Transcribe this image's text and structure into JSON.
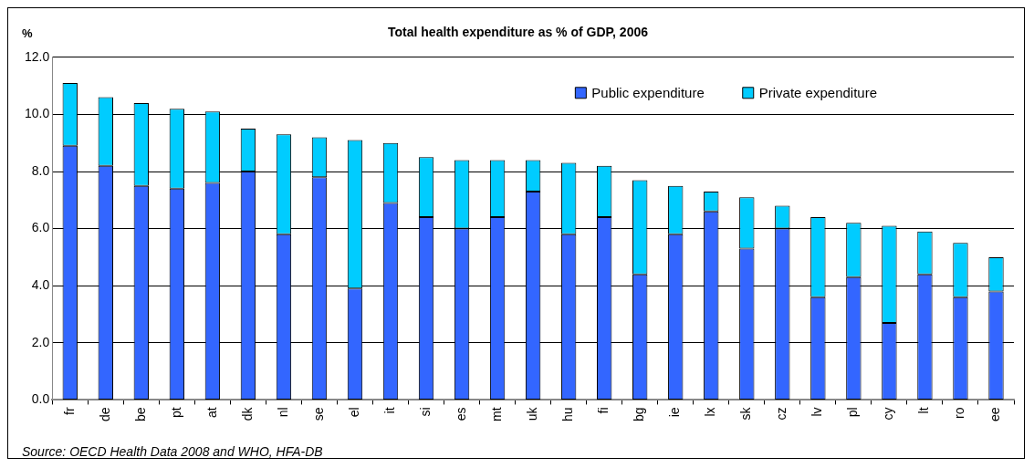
{
  "chart_data": {
    "type": "bar",
    "title": "Total health expenditure as % of GDP, 2006",
    "ylabel": "%",
    "categories": [
      "fr",
      "de",
      "be",
      "pt",
      "at",
      "dk",
      "nl",
      "se",
      "el",
      "it",
      "si",
      "es",
      "mt",
      "uk",
      "hu",
      "fi",
      "bg",
      "ie",
      "lx",
      "sk",
      "cz",
      "lv",
      "pl",
      "cy",
      "lt",
      "ro",
      "ee"
    ],
    "series": [
      {
        "name": "Public expenditure",
        "color": "#3366ff",
        "values": [
          8.9,
          8.2,
          7.5,
          7.4,
          7.6,
          8.0,
          5.8,
          7.8,
          3.9,
          6.9,
          6.4,
          6.0,
          6.4,
          7.3,
          5.8,
          6.4,
          4.4,
          5.8,
          6.6,
          5.3,
          6.0,
          3.6,
          4.3,
          2.7,
          4.4,
          3.6,
          3.8
        ]
      },
      {
        "name": "Private expenditure",
        "color": "#00ccff",
        "values": [
          2.2,
          2.4,
          2.9,
          2.8,
          2.5,
          1.5,
          3.5,
          1.4,
          5.2,
          2.1,
          2.1,
          2.4,
          2.0,
          1.1,
          2.5,
          1.8,
          3.3,
          1.7,
          0.7,
          1.8,
          0.8,
          2.8,
          1.9,
          3.4,
          1.5,
          1.9,
          1.2
        ]
      }
    ],
    "stacked": true,
    "ylim": [
      0,
      12
    ],
    "yticks": [
      {
        "value": 0,
        "label": "0.0"
      },
      {
        "value": 2,
        "label": "2.0"
      },
      {
        "value": 4,
        "label": "4.0"
      },
      {
        "value": 6,
        "label": "6.0"
      },
      {
        "value": 8,
        "label": "8.0"
      },
      {
        "value": 10,
        "label": "10.0"
      },
      {
        "value": 12,
        "label": "12.0"
      }
    ],
    "grid": "y",
    "legend": "top right",
    "annotations": [
      "Source: OECD Health Data 2008 and WHO, HFA-DB"
    ]
  }
}
